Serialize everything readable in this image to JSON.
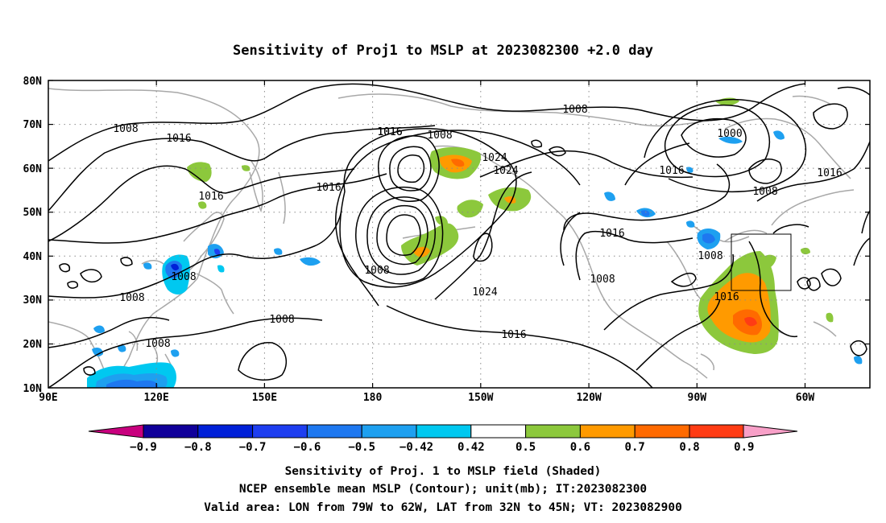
{
  "title": "Sensitivity of Proj1 to MSLP at 2023082300 +2.0 day",
  "lat_labels": [
    "10N",
    "20N",
    "30N",
    "40N",
    "50N",
    "60N",
    "70N",
    "80N"
  ],
  "lon_labels": [
    "90E",
    "120E",
    "150E",
    "180",
    "150W",
    "120W",
    "90W",
    "60W"
  ],
  "contour_labels": [
    "1008",
    "1016",
    "1008",
    "1016",
    "1016",
    "1008",
    "1016",
    "1024",
    "1008",
    "1024",
    "1016",
    "1008",
    "1016",
    "1008",
    "1000",
    "1016",
    "1008",
    "1016",
    "1008",
    "1016",
    "1008",
    "1008",
    "1008",
    "1016"
  ],
  "colorbar": {
    "labels": [
      "−0.9",
      "−0.8",
      "−0.7",
      "−0.6",
      "−0.5",
      "−0.42",
      "0.42",
      "0.5",
      "0.6",
      "0.7",
      "0.8",
      "0.9"
    ],
    "colors": [
      "#c8007e",
      "#10009a",
      "#0020d8",
      "#1e3ef0",
      "#1e78f0",
      "#1ea0f0",
      "#00c8f0",
      "#ffffff",
      "#8cc83c",
      "#ff9a00",
      "#ff6a00",
      "#ff3c14",
      "#ff0000",
      "#f8a0c8"
    ]
  },
  "footer": [
    "Sensitivity of Proj. 1 to MSLP field (Shaded)",
    "NCEP ensemble mean MSLP (Contour); unit(mb); IT:2023082300",
    "Valid area: LON from 79W to 62W, LAT from 32N to 45N; VT: 2023082900"
  ],
  "valid_area": {
    "lon_from": "79W",
    "lon_to": "62W",
    "lat_from": "32N",
    "lat_to": "45N"
  }
}
